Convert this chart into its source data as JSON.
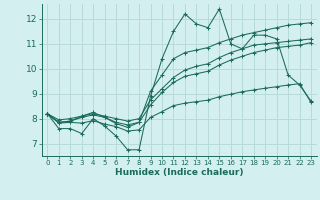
{
  "xlabel": "Humidex (Indice chaleur)",
  "bg_color": "#d4efef",
  "grid_color": "#b8dada",
  "line_color": "#1a6b5a",
  "xlim": [
    -0.5,
    23.5
  ],
  "ylim": [
    6.5,
    12.6
  ],
  "xticks": [
    0,
    1,
    2,
    3,
    4,
    5,
    6,
    7,
    8,
    9,
    10,
    11,
    12,
    13,
    14,
    15,
    16,
    17,
    18,
    19,
    20,
    21,
    22,
    23
  ],
  "yticks": [
    7,
    8,
    9,
    10,
    11,
    12
  ],
  "series": [
    [
      8.2,
      7.6,
      7.6,
      7.4,
      8.0,
      7.7,
      7.3,
      6.75,
      6.75,
      8.9,
      10.4,
      11.5,
      12.2,
      11.8,
      11.65,
      12.4,
      11.0,
      10.8,
      11.35,
      11.35,
      11.2,
      9.75,
      9.35,
      8.7
    ],
    [
      8.2,
      7.85,
      7.9,
      8.1,
      8.25,
      8.05,
      7.8,
      7.65,
      7.85,
      9.1,
      9.75,
      10.4,
      10.65,
      10.75,
      10.85,
      11.05,
      11.2,
      11.35,
      11.45,
      11.55,
      11.65,
      11.75,
      11.8,
      11.85
    ],
    [
      8.2,
      7.95,
      8.0,
      8.1,
      8.2,
      8.1,
      8.0,
      7.9,
      8.0,
      8.75,
      9.2,
      9.65,
      9.95,
      10.1,
      10.2,
      10.45,
      10.65,
      10.8,
      10.95,
      11.0,
      11.05,
      11.1,
      11.15,
      11.2
    ],
    [
      8.2,
      7.85,
      7.9,
      8.05,
      8.15,
      8.05,
      7.85,
      7.75,
      7.85,
      8.55,
      9.05,
      9.45,
      9.7,
      9.8,
      9.9,
      10.15,
      10.35,
      10.5,
      10.65,
      10.75,
      10.85,
      10.9,
      10.95,
      11.05
    ],
    [
      8.2,
      7.82,
      7.85,
      7.82,
      7.92,
      7.78,
      7.68,
      7.5,
      7.55,
      8.05,
      8.28,
      8.52,
      8.62,
      8.68,
      8.74,
      8.88,
      8.98,
      9.08,
      9.15,
      9.22,
      9.28,
      9.35,
      9.4,
      8.65
    ]
  ]
}
